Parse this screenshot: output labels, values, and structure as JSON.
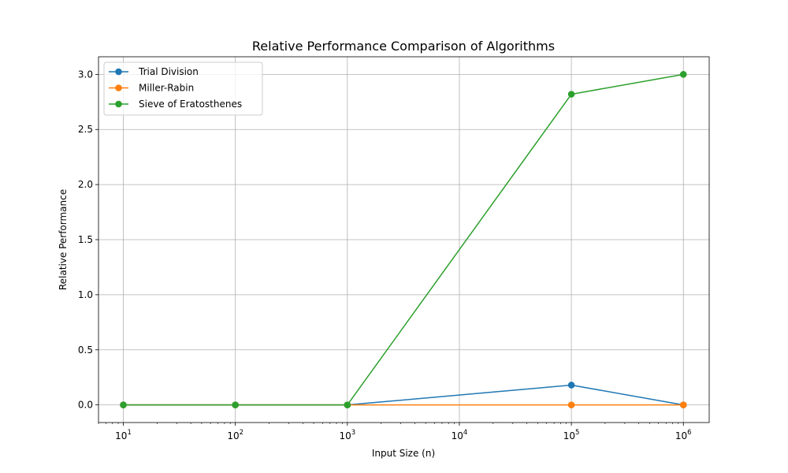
{
  "chart_data": {
    "type": "line",
    "title": "Relative Performance Comparison of Algorithms",
    "xlabel": "Input Size (n)",
    "ylabel": "Relative Performance",
    "xscale": "log",
    "xlim": [
      6.0,
      1700000
    ],
    "ylim": [
      -0.16,
      3.16
    ],
    "grid": true,
    "legend_position": "top-left",
    "x": [
      10,
      100,
      1000,
      100000,
      1000000
    ],
    "x_ticks": [
      {
        "value": 10,
        "base": "10",
        "exp": "1"
      },
      {
        "value": 100,
        "base": "10",
        "exp": "2"
      },
      {
        "value": 1000,
        "base": "10",
        "exp": "3"
      },
      {
        "value": 10000,
        "base": "10",
        "exp": "4"
      },
      {
        "value": 100000,
        "base": "10",
        "exp": "5"
      },
      {
        "value": 1000000,
        "base": "10",
        "exp": "6"
      }
    ],
    "y_ticks": [
      "0.0",
      "0.5",
      "1.0",
      "1.5",
      "2.0",
      "2.5",
      "3.0"
    ],
    "series": [
      {
        "name": "Trial Division",
        "color": "#1f77b4",
        "values": [
          0.0,
          0.0,
          0.0,
          0.18,
          0.0
        ]
      },
      {
        "name": "Miller-Rabin",
        "color": "#ff7f0e",
        "values": [
          0.0,
          0.0,
          0.0,
          0.0,
          0.0
        ]
      },
      {
        "name": "Sieve of Eratosthenes",
        "color": "#2ca02c",
        "values": [
          0.0,
          0.0,
          0.0,
          2.82,
          3.0
        ]
      }
    ]
  }
}
